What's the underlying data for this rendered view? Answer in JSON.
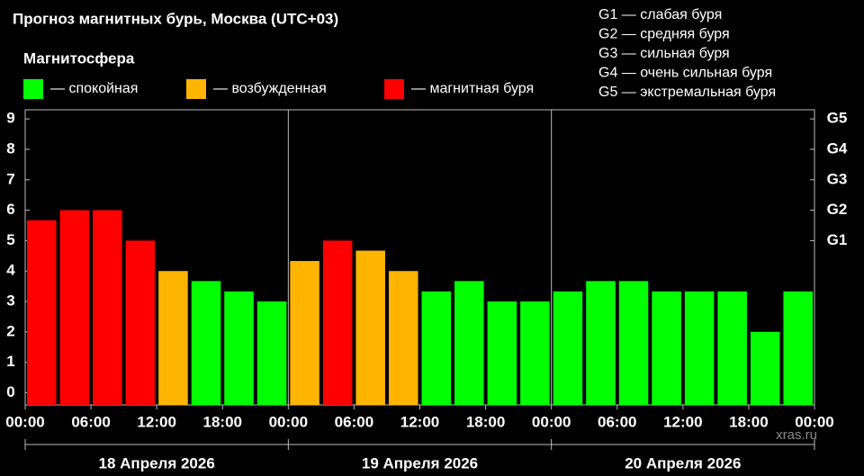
{
  "chart_data": {
    "type": "bar",
    "title": "Прогноз магнитных бурь, Москва (UTC+03)",
    "legend_title": "Магнитосфера",
    "legend": [
      {
        "name": "— спокойная",
        "color": "#00ff00"
      },
      {
        "name": "— возбужденная",
        "color": "#ffb400"
      },
      {
        "name": "— магнитная буря",
        "color": "#ff0000"
      }
    ],
    "storm_scale": [
      "G1 — слабая буря",
      "G2 — средняя буря",
      "G3 — сильная буря",
      "G4 — очень сильная буря",
      "G5 — экстремальная буря"
    ],
    "x": [
      0,
      3,
      6,
      9,
      12,
      15,
      18,
      21,
      24,
      27,
      30,
      33,
      36,
      39,
      42,
      45,
      48,
      51,
      54,
      57,
      60,
      63,
      66,
      69
    ],
    "values": [
      5.67,
      6,
      6,
      5,
      4,
      3.67,
      3.33,
      3,
      4.33,
      5,
      4.67,
      4,
      3.33,
      3.67,
      3,
      3,
      3.33,
      3.67,
      3.67,
      3.33,
      3.33,
      3.33,
      2,
      3.33
    ],
    "colors": [
      "#ff0000",
      "#ff0000",
      "#ff0000",
      "#ff0000",
      "#ffb400",
      "#00ff00",
      "#00ff00",
      "#00ff00",
      "#ffb400",
      "#ff0000",
      "#ffb400",
      "#ffb400",
      "#00ff00",
      "#00ff00",
      "#00ff00",
      "#00ff00",
      "#00ff00",
      "#00ff00",
      "#00ff00",
      "#00ff00",
      "#00ff00",
      "#00ff00",
      "#00ff00",
      "#00ff00"
    ],
    "xlim": [
      0,
      72
    ],
    "xticks": [
      {
        "value": 0,
        "label": "00:00"
      },
      {
        "value": 6,
        "label": "06:00"
      },
      {
        "value": 12,
        "label": "12:00"
      },
      {
        "value": 18,
        "label": "18:00"
      },
      {
        "value": 24,
        "label": "00:00"
      },
      {
        "value": 30,
        "label": "06:00"
      },
      {
        "value": 36,
        "label": "12:00"
      },
      {
        "value": 42,
        "label": "18:00"
      },
      {
        "value": 48,
        "label": "00:00"
      },
      {
        "value": 54,
        "label": "06:00"
      },
      {
        "value": 60,
        "label": "12:00"
      },
      {
        "value": 66,
        "label": "18:00"
      },
      {
        "value": 72,
        "label": "00:00"
      }
    ],
    "ylim": [
      -0.4,
      9.3
    ],
    "yticks": [
      0,
      1,
      2,
      3,
      4,
      5,
      6,
      7,
      8,
      9
    ],
    "y2lim": [
      -0.4,
      9.3
    ],
    "y2ticks": [
      {
        "value": 5,
        "label": "G1"
      },
      {
        "value": 6,
        "label": "G2"
      },
      {
        "value": 7,
        "label": "G3"
      },
      {
        "value": 8,
        "label": "G4"
      },
      {
        "value": 9,
        "label": "G5"
      }
    ],
    "days": [
      "18 Апреля 2026",
      "19 Апреля 2026",
      "20 Апреля 2026"
    ],
    "watermark": "xras.ru"
  }
}
